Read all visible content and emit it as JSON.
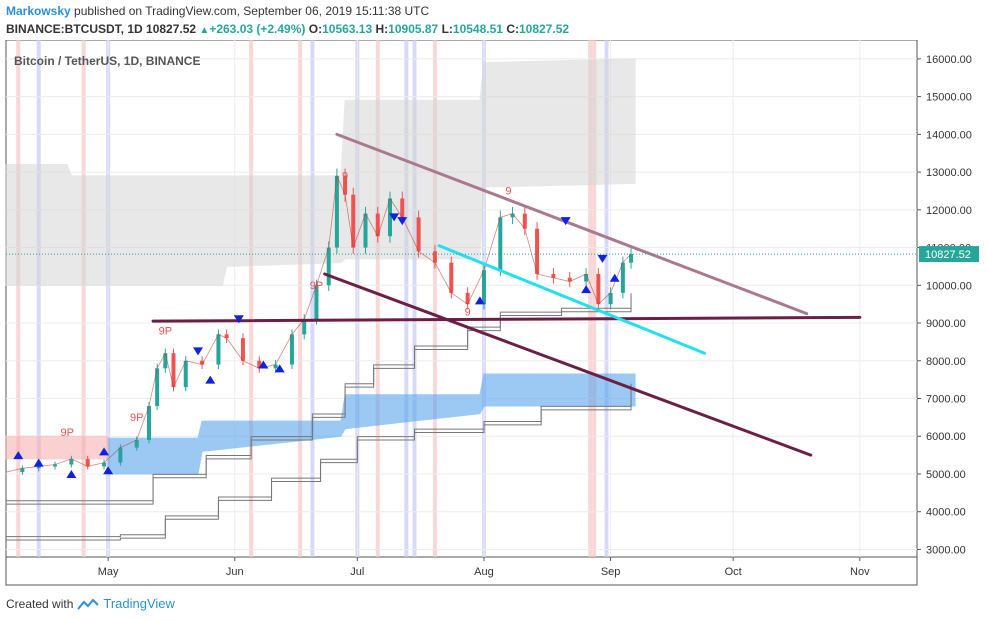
{
  "header": {
    "author": "Markowsky",
    "published_text": "published on TradingView.com, September 06, 2019 15:11:38 UTC",
    "symbol": "BINANCE:BTCUSDT, 1D",
    "last": "10827.52",
    "change": "+263.03 (+2.49%)",
    "o_label": "O:",
    "o_value": "10563.13",
    "h_label": "H:",
    "h_value": "10905.87",
    "l_label": "L:",
    "l_value": "10548.51",
    "c_label": "C:",
    "c_value": "10827.52"
  },
  "footer": {
    "created_with": "Created with",
    "brand": "TradingView"
  },
  "colors": {
    "up": "#26a69a",
    "down": "#ef5350",
    "cloud_grey": "#d6d6d6",
    "cloud_blue": "#5aa6ee",
    "cloud_red": "#f7b2b2",
    "trend_top": "#a9798f",
    "trend_lower": "#6b1f44",
    "support": "#6b1f44",
    "channel": "#23e0ee",
    "price_line": "#26a69a",
    "price_tag": "#26a69a"
  },
  "chart_data": {
    "type": "candlestick",
    "title": "Bitcoin / TetherUS, 1D, BINANCE",
    "symbol": "BTCUSDT",
    "timeframe": "1D",
    "x_range": [
      "2019-04-06",
      "2019-11-15"
    ],
    "ylim": [
      2800,
      16500
    ],
    "y_ticks": [
      "16000.00",
      "15000.00",
      "14000.00",
      "13000.00",
      "12000.00",
      "11000.00",
      "10000.00",
      "9000.00",
      "8000.00",
      "7000.00",
      "6000.00",
      "5000.00",
      "4000.00",
      "3000.00"
    ],
    "x_ticks": [
      {
        "label": "May",
        "date": "2019-05-01"
      },
      {
        "label": "Jun",
        "date": "2019-06-01"
      },
      {
        "label": "Jul",
        "date": "2019-07-01"
      },
      {
        "label": "Aug",
        "date": "2019-08-01"
      },
      {
        "label": "Sep",
        "date": "2019-09-01"
      },
      {
        "label": "Oct",
        "date": "2019-10-01"
      },
      {
        "label": "Nov",
        "date": "2019-11-01"
      }
    ],
    "last_price_label": "10827.52",
    "last_price": 10827.52,
    "close_series": [
      [
        "2019-04-06",
        5050
      ],
      [
        "2019-04-10",
        5150
      ],
      [
        "2019-04-14",
        5200
      ],
      [
        "2019-04-18",
        5250
      ],
      [
        "2019-04-22",
        5400
      ],
      [
        "2019-04-26",
        5200
      ],
      [
        "2019-04-30",
        5300
      ],
      [
        "2019-05-04",
        5700
      ],
      [
        "2019-05-08",
        5900
      ],
      [
        "2019-05-11",
        6800
      ],
      [
        "2019-05-13",
        7800
      ],
      [
        "2019-05-15",
        8200
      ],
      [
        "2019-05-17",
        7300
      ],
      [
        "2019-05-20",
        8000
      ],
      [
        "2019-05-24",
        7900
      ],
      [
        "2019-05-28",
        8700
      ],
      [
        "2019-05-30",
        8600
      ],
      [
        "2019-06-03",
        8000
      ],
      [
        "2019-06-07",
        7800
      ],
      [
        "2019-06-11",
        7900
      ],
      [
        "2019-06-15",
        8700
      ],
      [
        "2019-06-18",
        9100
      ],
      [
        "2019-06-21",
        10000
      ],
      [
        "2019-06-24",
        11000
      ],
      [
        "2019-06-26",
        12900
      ],
      [
        "2019-06-28",
        12400
      ],
      [
        "2019-06-30",
        11000
      ],
      [
        "2019-07-03",
        11900
      ],
      [
        "2019-07-06",
        11300
      ],
      [
        "2019-07-09",
        12300
      ],
      [
        "2019-07-12",
        11800
      ],
      [
        "2019-07-16",
        10900
      ],
      [
        "2019-07-20",
        10600
      ],
      [
        "2019-07-24",
        9800
      ],
      [
        "2019-07-28",
        9500
      ],
      [
        "2019-08-01",
        10400
      ],
      [
        "2019-08-05",
        11800
      ],
      [
        "2019-08-08",
        11900
      ],
      [
        "2019-08-11",
        11500
      ],
      [
        "2019-08-14",
        10300
      ],
      [
        "2019-08-18",
        10200
      ],
      [
        "2019-08-22",
        10100
      ],
      [
        "2019-08-26",
        10300
      ],
      [
        "2019-08-29",
        9500
      ],
      [
        "2019-09-01",
        9800
      ],
      [
        "2019-09-04",
        10600
      ],
      [
        "2019-09-06",
        10827.52
      ]
    ],
    "markers": [
      {
        "type": "sell",
        "date": "2019-05-23",
        "price": 8250
      },
      {
        "type": "sell",
        "date": "2019-06-02",
        "price": 9100
      },
      {
        "type": "sell",
        "date": "2019-07-10",
        "price": 11800
      },
      {
        "type": "sell",
        "date": "2019-07-12",
        "price": 11700
      },
      {
        "type": "sell",
        "date": "2019-08-21",
        "price": 11700
      },
      {
        "type": "sell",
        "date": "2019-08-30",
        "price": 10700
      },
      {
        "type": "buy",
        "date": "2019-04-14",
        "price": 5300
      },
      {
        "type": "buy",
        "date": "2019-04-22",
        "price": 5000
      },
      {
        "type": "buy",
        "date": "2019-05-01",
        "price": 5100
      },
      {
        "type": "buy",
        "date": "2019-05-26",
        "price": 7500
      },
      {
        "type": "buy",
        "date": "2019-06-12",
        "price": 7800
      },
      {
        "type": "buy",
        "date": "2019-07-31",
        "price": 9600
      },
      {
        "type": "buy",
        "date": "2019-08-26",
        "price": 9900
      },
      {
        "type": "buy",
        "date": "2019-09-02",
        "price": 10200
      },
      {
        "type": "buy",
        "date": "2019-06-08",
        "price": 7900
      },
      {
        "type": "buy",
        "date": "2019-04-30",
        "price": 5600
      },
      {
        "type": "buy",
        "date": "2019-04-09",
        "price": 5500
      }
    ],
    "labels": [
      {
        "text": "9P",
        "date": "2019-04-21",
        "price": 6000
      },
      {
        "text": "9P",
        "date": "2019-05-08",
        "price": 6400
      },
      {
        "text": "9P",
        "date": "2019-05-15",
        "price": 8700
      },
      {
        "text": "9P",
        "date": "2019-06-21",
        "price": 9900
      },
      {
        "text": "9",
        "date": "2019-06-28",
        "price": 12800
      },
      {
        "text": "9",
        "date": "2019-08-07",
        "price": 12400
      },
      {
        "text": "9",
        "date": "2019-07-28",
        "price": 9200
      }
    ],
    "trendlines": [
      {
        "name": "upper-trendline",
        "from": [
          "2019-06-26",
          14000
        ],
        "to": [
          "2019-10-19",
          9250
        ]
      },
      {
        "name": "lower-trendline",
        "from": [
          "2019-06-23",
          10300
        ],
        "to": [
          "2019-10-20",
          5500
        ]
      },
      {
        "name": "support-line",
        "from": [
          "2019-05-12",
          9050
        ],
        "to": [
          "2019-11-01",
          9150
        ]
      },
      {
        "name": "channel-line",
        "from": [
          "2019-07-21",
          11050
        ],
        "to": [
          "2019-09-24",
          8200
        ]
      }
    ],
    "vertical_highlights": {
      "red": [
        "2019-04-09",
        "2019-04-25",
        "2019-06-17",
        "2019-06-05",
        "2019-07-06",
        "2019-07-20",
        "2019-08-27",
        "2019-08-28"
      ],
      "blue": [
        "2019-04-14",
        "2019-05-01",
        "2019-06-20",
        "2019-07-01",
        "2019-07-13",
        "2019-07-15",
        "2019-08-01",
        "2019-08-31"
      ]
    },
    "grey_cloud": [
      [
        "2019-04-06",
        13200,
        10000
      ],
      [
        "2019-04-21",
        13200,
        10000
      ],
      [
        "2019-04-22",
        12900,
        10000
      ],
      [
        "2019-05-29",
        12900,
        10000
      ],
      [
        "2019-05-30",
        12900,
        10500
      ],
      [
        "2019-06-27",
        12900,
        10600
      ],
      [
        "2019-06-28",
        14900,
        10700
      ],
      [
        "2019-07-31",
        14900,
        10700
      ],
      [
        "2019-08-01",
        15900,
        12600
      ],
      [
        "2019-09-07",
        16000,
        12700
      ]
    ],
    "blue_cloud": [
      [
        "2019-05-01",
        5950,
        5000
      ],
      [
        "2019-05-23",
        5950,
        5000
      ],
      [
        "2019-05-24",
        6400,
        5600
      ],
      [
        "2019-06-27",
        6400,
        6000
      ],
      [
        "2019-06-28",
        7100,
        6200
      ],
      [
        "2019-07-31",
        7100,
        6600
      ],
      [
        "2019-08-01",
        7650,
        6800
      ],
      [
        "2019-09-07",
        7650,
        6800
      ]
    ],
    "red_cloud": [
      [
        "2019-04-06",
        6000,
        5400
      ],
      [
        "2019-05-01",
        6000,
        5400
      ]
    ]
  }
}
